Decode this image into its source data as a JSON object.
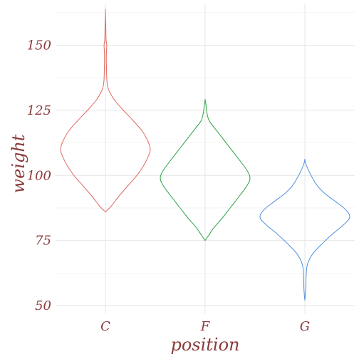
{
  "chart_data": {
    "type": "violin",
    "title": "",
    "xlabel": "position",
    "ylabel": "weight",
    "categories": [
      "C",
      "F",
      "G"
    ],
    "ylim": [
      47,
      166
    ],
    "yticks": [
      50,
      75,
      100,
      125,
      150
    ],
    "grid": true,
    "legend": "none",
    "series": [
      {
        "category": "C",
        "color": "#e06a61",
        "min": 86,
        "max": 163,
        "mode": 110,
        "density": [
          [
            86,
            0.0
          ],
          [
            88,
            0.12
          ],
          [
            92,
            0.3
          ],
          [
            96,
            0.5
          ],
          [
            100,
            0.7
          ],
          [
            104,
            0.86
          ],
          [
            108,
            0.97
          ],
          [
            110,
            1.0
          ],
          [
            113,
            0.95
          ],
          [
            117,
            0.82
          ],
          [
            121,
            0.62
          ],
          [
            125,
            0.4
          ],
          [
            129,
            0.2
          ],
          [
            133,
            0.07
          ],
          [
            136,
            0.035
          ],
          [
            140,
            0.025
          ],
          [
            146,
            0.02
          ],
          [
            150,
            0.03
          ],
          [
            152,
            0.015
          ],
          [
            156,
            0.01
          ],
          [
            163,
            0.0
          ]
        ]
      },
      {
        "category": "F",
        "color": "#2ea043",
        "min": 75,
        "max": 129,
        "mode": 99,
        "density": [
          [
            75,
            0.0
          ],
          [
            77,
            0.08
          ],
          [
            80,
            0.2
          ],
          [
            84,
            0.4
          ],
          [
            88,
            0.58
          ],
          [
            92,
            0.76
          ],
          [
            96,
            0.93
          ],
          [
            99,
            1.0
          ],
          [
            102,
            0.93
          ],
          [
            106,
            0.76
          ],
          [
            110,
            0.58
          ],
          [
            114,
            0.4
          ],
          [
            118,
            0.22
          ],
          [
            121,
            0.09
          ],
          [
            124,
            0.04
          ],
          [
            127,
            0.02
          ],
          [
            129,
            0.0
          ]
        ]
      },
      {
        "category": "G",
        "color": "#4f8fe0",
        "min": 52,
        "max": 106,
        "mode": 84,
        "density": [
          [
            52,
            0.0
          ],
          [
            56,
            0.02
          ],
          [
            62,
            0.03
          ],
          [
            66,
            0.06
          ],
          [
            70,
            0.18
          ],
          [
            74,
            0.4
          ],
          [
            78,
            0.65
          ],
          [
            81,
            0.86
          ],
          [
            84,
            1.0
          ],
          [
            87,
            0.9
          ],
          [
            90,
            0.68
          ],
          [
            93,
            0.45
          ],
          [
            96,
            0.28
          ],
          [
            99,
            0.17
          ],
          [
            102,
            0.08
          ],
          [
            104,
            0.03
          ],
          [
            106,
            0.0
          ]
        ]
      }
    ]
  }
}
